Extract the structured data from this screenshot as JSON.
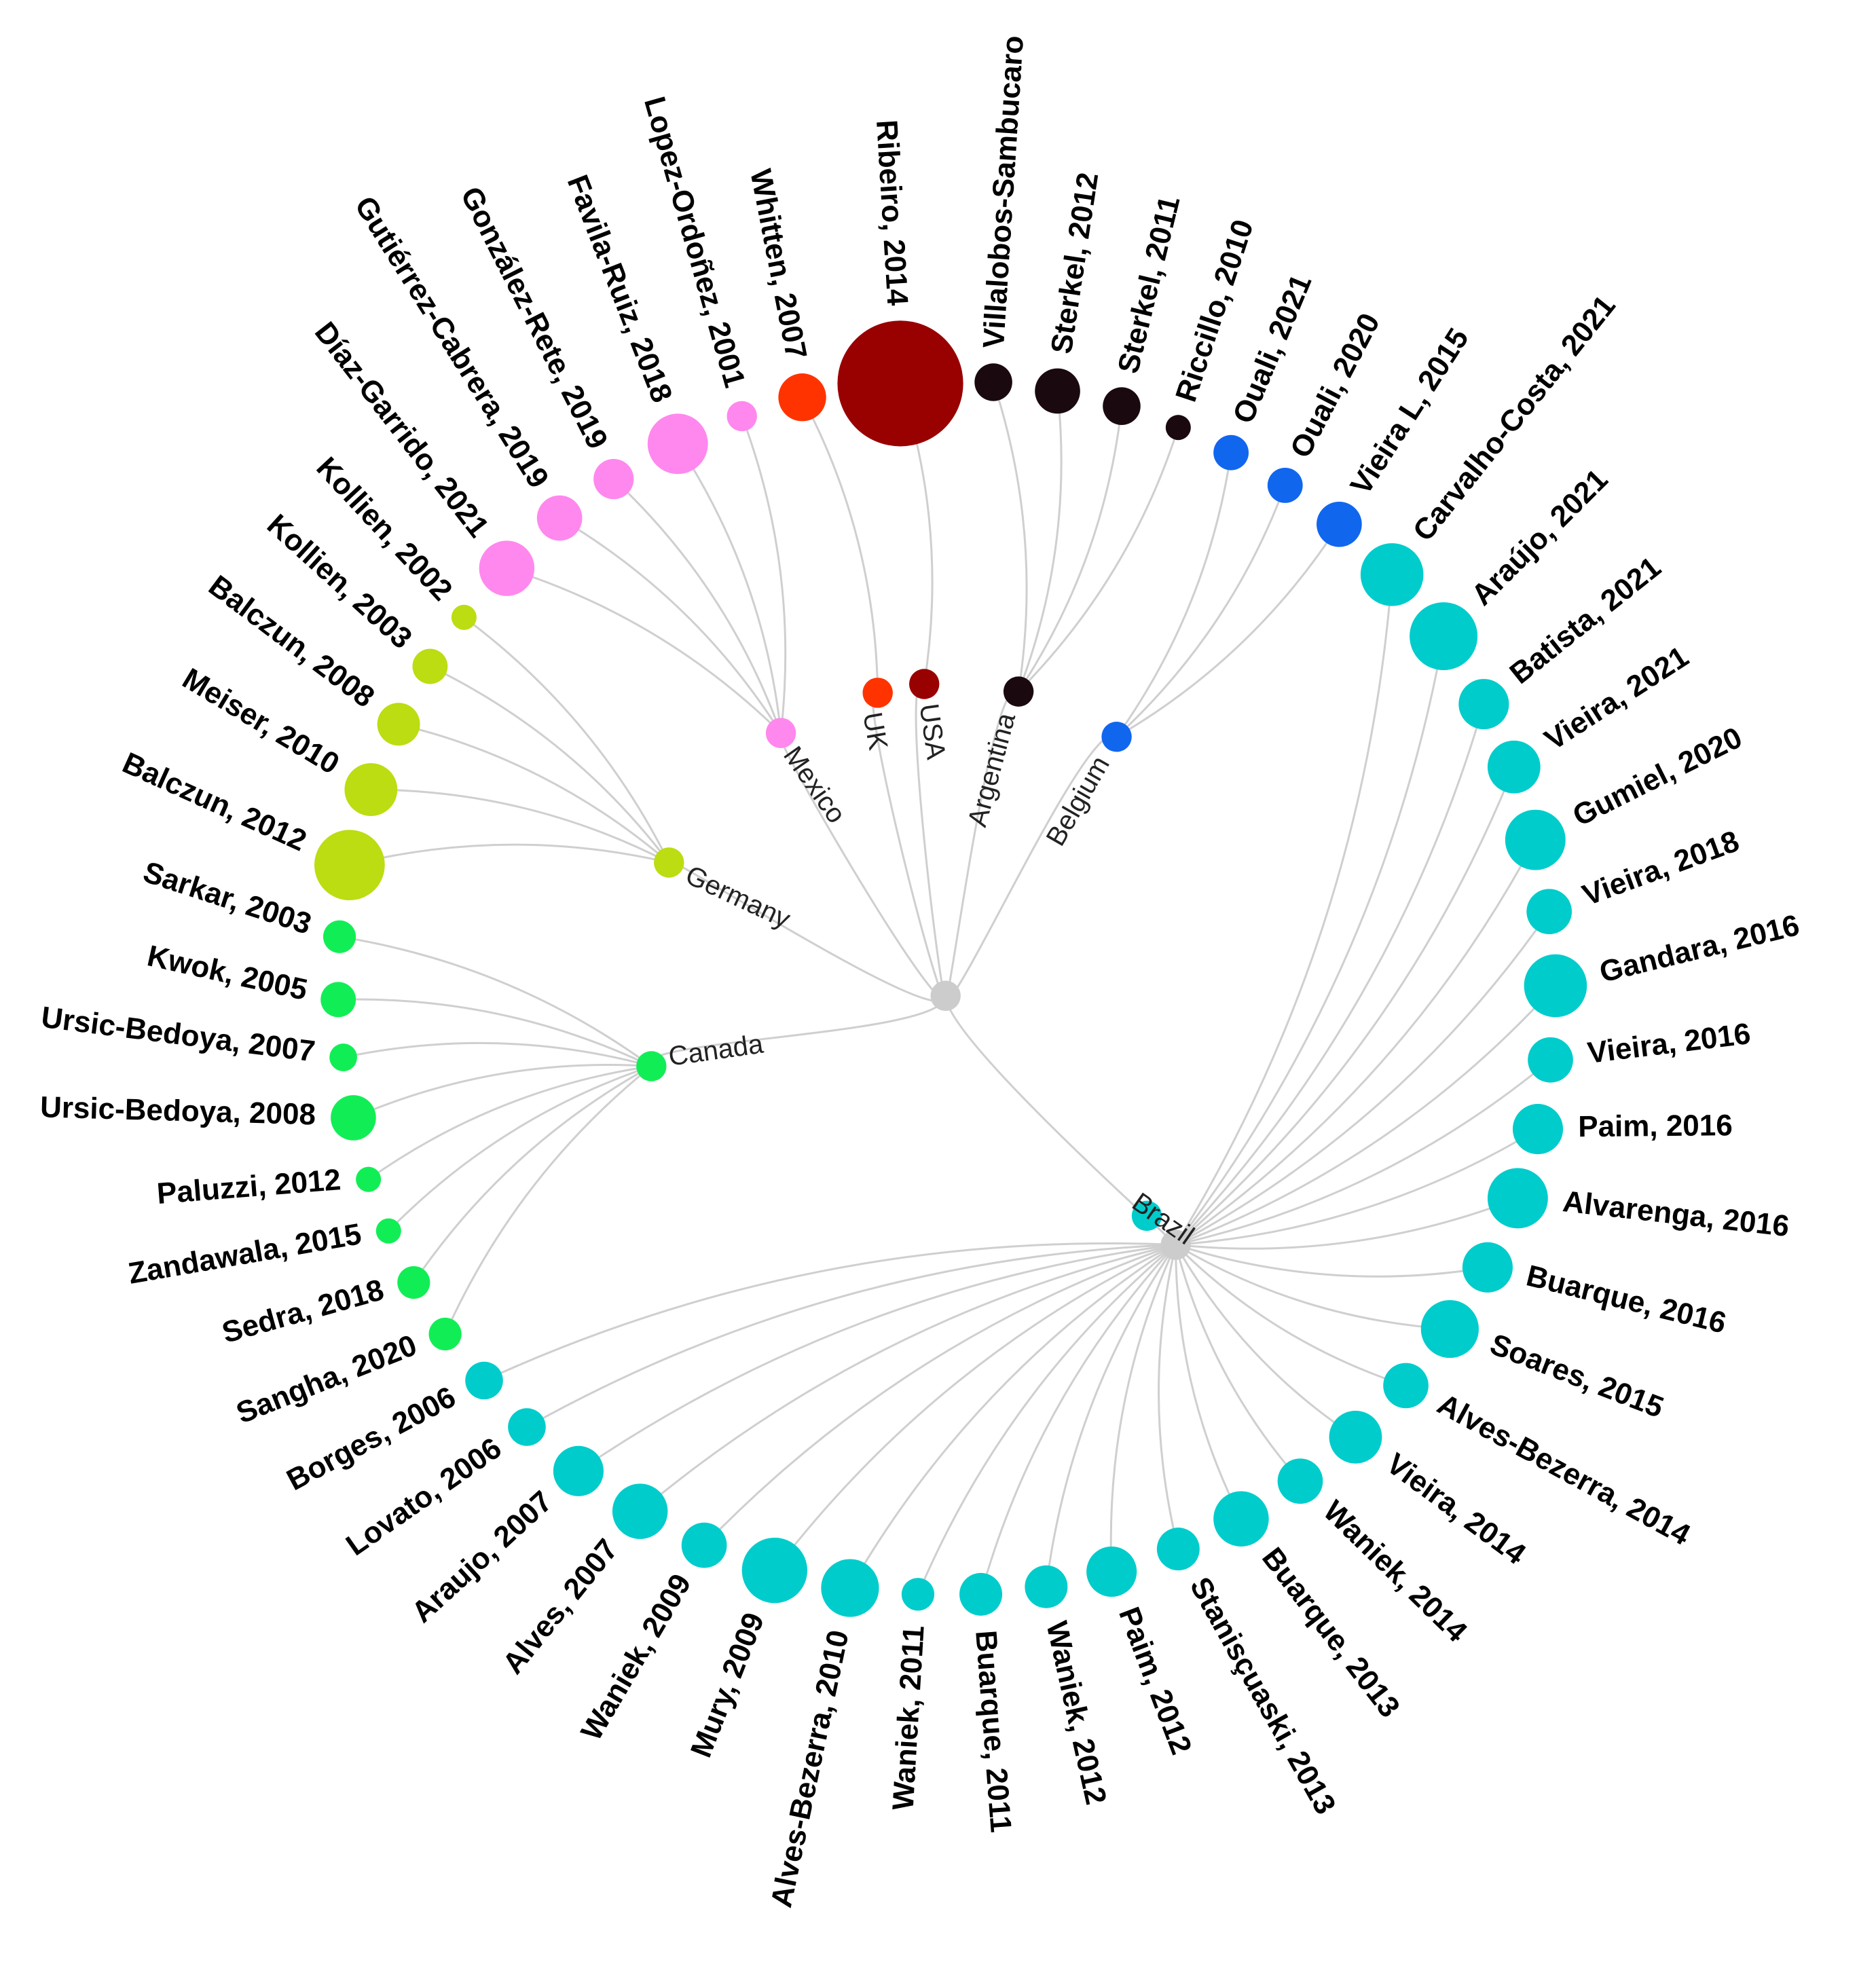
{
  "root": {
    "color": "#cccccc"
  },
  "countries": [
    {
      "key": "mexico",
      "label": "Mexico",
      "color": "#ff88ee"
    },
    {
      "key": "uk",
      "label": "UK",
      "color": "#ff3300"
    },
    {
      "key": "usa",
      "label": "USA",
      "color": "#990000"
    },
    {
      "key": "argentina",
      "label": "Argentina",
      "color": "#1a0a0f"
    },
    {
      "key": "belgium",
      "label": "Belgium",
      "color": "#1166ee"
    },
    {
      "key": "germany",
      "label": "Germany",
      "color": "#bbdd11"
    },
    {
      "key": "canada",
      "label": "Canada",
      "color": "#11ee55"
    },
    {
      "key": "brazil",
      "label": "Brazil",
      "color": "#00cccc"
    }
  ],
  "leaves": [
    {
      "label": "Balczun, 2012",
      "country": "germany",
      "size": 5
    },
    {
      "label": "Meiser, 2010",
      "country": "germany",
      "size": 4
    },
    {
      "label": "Balczun, 2008",
      "country": "germany",
      "size": 3
    },
    {
      "label": "Kollien, 2003",
      "country": "germany",
      "size": 2
    },
    {
      "label": "Kollien, 2002",
      "country": "germany",
      "size": 1
    },
    {
      "label": "Díaz-Garrido, 2021",
      "country": "mexico",
      "size": 4
    },
    {
      "label": "Gutiérrez-Cabrera, 2019",
      "country": "mexico",
      "size": 3
    },
    {
      "label": "González-Rete, 2019",
      "country": "mexico",
      "size": 2
    },
    {
      "label": "Favila-Ruiz, 2018",
      "country": "mexico",
      "size": 4
    },
    {
      "label": "Lopez-Ordoñez, 2001",
      "country": "mexico",
      "size": 1
    },
    {
      "label": "Whitten, 2007",
      "country": "uk",
      "size": 3
    },
    {
      "label": "Ribeiro, 2014",
      "country": "usa",
      "size": 10
    },
    {
      "label": "Villalobos-Sambucaro",
      "country": "argentina",
      "size": 2
    },
    {
      "label": "Sterkel, 2012",
      "country": "argentina",
      "size": 3
    },
    {
      "label": "Sterkel, 2011",
      "country": "argentina",
      "size": 2
    },
    {
      "label": "Riccillo, 2010",
      "country": "argentina",
      "size": 1
    },
    {
      "label": "Ouali, 2021",
      "country": "belgium",
      "size": 2
    },
    {
      "label": "Ouali, 2020",
      "country": "belgium",
      "size": 2
    },
    {
      "label": "Vieira L, 2015",
      "country": "belgium",
      "size": 3
    },
    {
      "label": "Carvalho-Costa, 2021",
      "country": "brazil",
      "size": 4
    },
    {
      "label": "Araújo, 2021",
      "country": "brazil",
      "size": 5
    },
    {
      "label": "Batista, 2021",
      "country": "brazil",
      "size": 3
    },
    {
      "label": "Vieira, 2021",
      "country": "brazil",
      "size": 3
    },
    {
      "label": "Gumiel, 2020",
      "country": "brazil",
      "size": 4
    },
    {
      "label": "Vieira, 2018",
      "country": "brazil",
      "size": 2
    },
    {
      "label": "Gandara, 2016",
      "country": "brazil",
      "size": 4
    },
    {
      "label": "Vieira, 2016",
      "country": "brazil",
      "size": 2
    },
    {
      "label": "Paim, 2016",
      "country": "brazil",
      "size": 3
    },
    {
      "label": "Alvarenga, 2016",
      "country": "brazil",
      "size": 4
    },
    {
      "label": "Buarque, 2016",
      "country": "brazil",
      "size": 3
    },
    {
      "label": "Soares, 2015",
      "country": "brazil",
      "size": 4
    },
    {
      "label": "Alves-Bezerra, 2014",
      "country": "brazil",
      "size": 2
    },
    {
      "label": "Vieira, 2014",
      "country": "brazil",
      "size": 3
    },
    {
      "label": "Waniek, 2014",
      "country": "brazil",
      "size": 2
    },
    {
      "label": "Buarque, 2013",
      "country": "brazil",
      "size": 3
    },
    {
      "label": "Stanisçuaski, 2013",
      "country": "brazil",
      "size": 2
    },
    {
      "label": "Paim, 2012",
      "country": "brazil",
      "size": 2
    },
    {
      "label": "Waniek, 2012",
      "country": "brazil",
      "size": 2
    },
    {
      "label": "Buarque, 2011",
      "country": "brazil",
      "size": 2
    },
    {
      "label": "Waniek, 2011",
      "country": "brazil",
      "size": 1
    },
    {
      "label": "Alves-Bezerra, 2010",
      "country": "brazil",
      "size": 3
    },
    {
      "label": "Mury, 2009",
      "country": "brazil",
      "size": 5
    },
    {
      "label": "Waniek, 2009",
      "country": "brazil",
      "size": 2
    },
    {
      "label": "Alves, 2007",
      "country": "brazil",
      "size": 4
    },
    {
      "label": "Araujo, 2007",
      "country": "brazil",
      "size": 3
    },
    {
      "label": "Lovato, 2006",
      "country": "brazil",
      "size": 2
    },
    {
      "label": "Borges, 2006",
      "country": "brazil",
      "size": 2
    },
    {
      "label": "Sangha, 2020",
      "country": "canada",
      "size": 2
    },
    {
      "label": "Sedra, 2018",
      "country": "canada",
      "size": 2
    },
    {
      "label": "Zandawala, 2015",
      "country": "canada",
      "size": 1
    },
    {
      "label": "Paluzzi, 2012",
      "country": "canada",
      "size": 1
    },
    {
      "label": "Ursic-Bedoya, 2008",
      "country": "canada",
      "size": 3
    },
    {
      "label": "Ursic-Bedoya, 2007",
      "country": "canada",
      "size": 1
    },
    {
      "label": "Kwok, 2005",
      "country": "canada",
      "size": 2
    },
    {
      "label": "Sarkar, 2003",
      "country": "canada",
      "size": 1
    }
  ]
}
